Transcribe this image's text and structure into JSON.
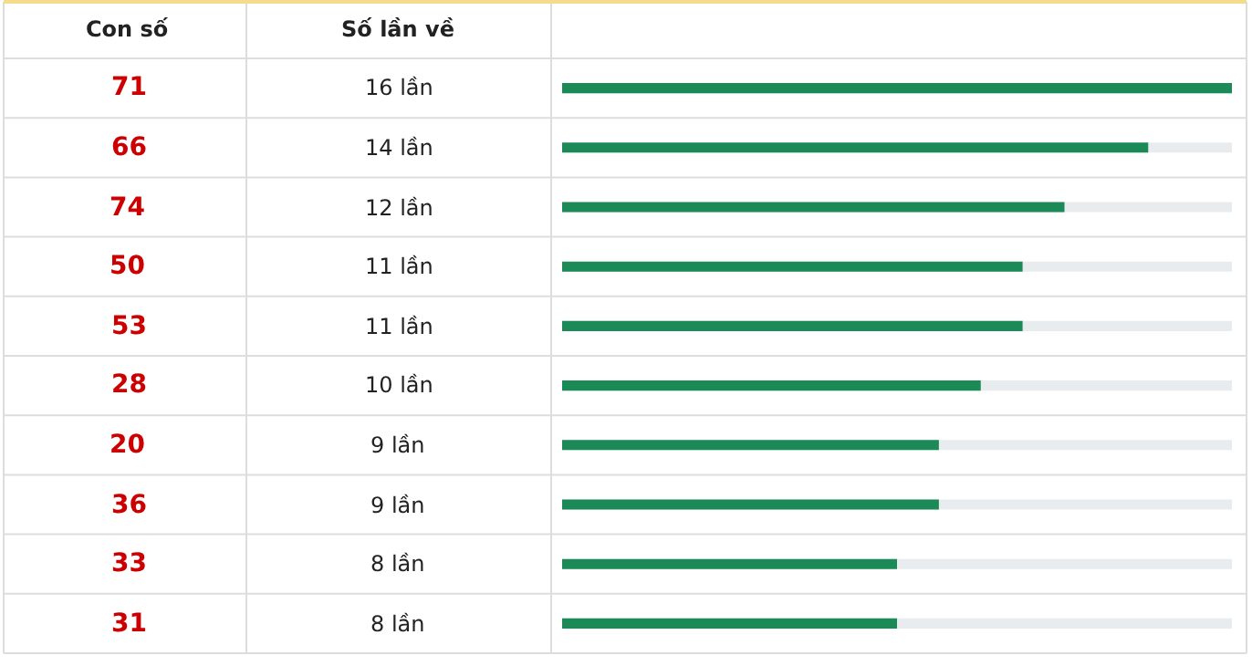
{
  "chart_data": {
    "type": "bar",
    "orientation": "horizontal",
    "ylabel": "Con số",
    "xlabel": "Số lần về",
    "categories": [
      "71",
      "66",
      "74",
      "50",
      "53",
      "28",
      "20",
      "36",
      "33",
      "31"
    ],
    "values": [
      16,
      14,
      12,
      11,
      11,
      10,
      9,
      9,
      8,
      8
    ],
    "value_labels": [
      "16 lần",
      "14 lần",
      "12 lần",
      "11 lần",
      "11 lần",
      "10 lần",
      "9 lần",
      "9 lần",
      "8 lần",
      "8 lần"
    ],
    "color": "#1b8a57",
    "xlim": [
      0,
      16
    ],
    "legend": false
  }
}
